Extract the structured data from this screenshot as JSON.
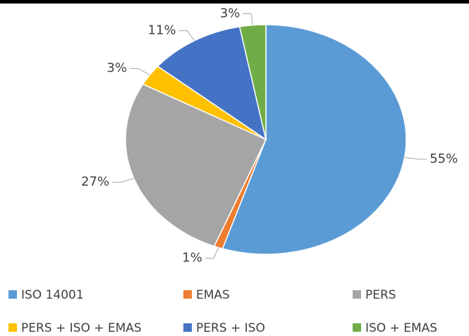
{
  "chart_data": {
    "type": "pie",
    "categories": [
      "ISO 14001",
      "EMAS",
      "PERS",
      "PERS + ISO + EMAS",
      "PERS + ISO",
      "ISO + EMAS"
    ],
    "values": [
      55,
      1,
      27,
      3,
      11,
      3
    ],
    "value_labels": [
      "55%",
      "1%",
      "27%",
      "3%",
      "11%",
      "3%"
    ],
    "colors": [
      "#5b9bd5",
      "#ed7d31",
      "#a5a5a5",
      "#ffc000",
      "#4472c4",
      "#70ad47"
    ],
    "legend": "bottom"
  }
}
